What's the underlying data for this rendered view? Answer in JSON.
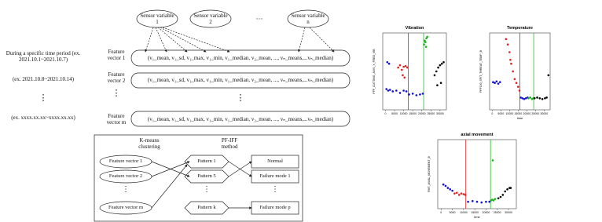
{
  "diagram": {
    "sensors": [
      "Sensor variable 1",
      "Sensor variable 2",
      "Sensor variable n"
    ],
    "sensor_ellipsis": "···",
    "rows": [
      {
        "period": "During a specific time period (ex. 2021.10.1~2021.10.7)",
        "feature": "Feature vector 1",
        "vector": "(v₁_mean, v₁_sd, v₁_max, v₁_min, v₁_median, v₂_mean, ..., vₙ_means,...vₙ_median)"
      },
      {
        "period": "(ex. 2021.10.8~2021.10.14)",
        "feature": "Feature vector 2",
        "vector": "(v₁_mean, v₁_sd, v₁_max, v₁_min, v₁_median, v₂_mean, ..., vₙ_means,...vₙ_median)"
      },
      {
        "period": "⋮",
        "feature": "⋮",
        "vector": "⋮"
      },
      {
        "period": "(ex. xxxx.xx.xx~xxxx.xx.xx)",
        "feature": "Feature vector m",
        "vector": "(v₁_mean, v₁_sd, v₁_max, v₁_min, v₁_median, v₂_mean, ..., vₙ_means,...vₙ_median)"
      }
    ],
    "clustering": {
      "kmeans": "K-means clustering",
      "pfiff": "PF-IFF method",
      "vectors": [
        "Feature vector 1",
        "Feature vector 2",
        "⋮",
        "Feature vector m"
      ],
      "patterns": [
        "Pattern 1",
        "Pattern 5",
        "⋮",
        "Pattern k"
      ],
      "modes": [
        "Normal",
        "Failure mode 1",
        "⋮",
        "Failure mode p"
      ]
    }
  },
  "chart_data": [
    {
      "type": "scatter",
      "title": "Vibration",
      "ylabel": "PFF_CUTTING_AXIS_X_FEED_VIB",
      "xlim": [
        -1500,
        33500
      ],
      "ylim": [
        0,
        1
      ],
      "xticks": [
        0,
        5000,
        10000,
        15000,
        20000,
        25000,
        30000
      ],
      "vlines": [
        {
          "x": 12500,
          "color": "#e02020"
        },
        {
          "x": 21000,
          "color": "#20c020"
        }
      ],
      "series": [
        {
          "color": "#1010d0",
          "x": [
            500,
            1500,
            2500,
            4000,
            6000,
            8000,
            10000,
            11500,
            13000,
            15000,
            17000,
            19000,
            20500,
            1000,
            2000
          ],
          "values": [
            0.27,
            0.25,
            0.26,
            0.24,
            0.25,
            0.22,
            0.25,
            0.24,
            0.2,
            0.21,
            0.19,
            0.2,
            0.21,
            0.62,
            0.6
          ]
        },
        {
          "color": "#e02020",
          "x": [
            7000,
            8000,
            9000,
            10000,
            11000,
            12000,
            9500,
            10500
          ],
          "values": [
            0.55,
            0.58,
            0.52,
            0.56,
            0.57,
            0.55,
            0.45,
            0.42
          ]
        },
        {
          "color": "#20b020",
          "x": [
            21200,
            21600,
            22000,
            22500,
            23000,
            22300
          ],
          "values": [
            0.85,
            0.9,
            0.88,
            0.93,
            0.95,
            0.82
          ]
        },
        {
          "color": "#000000",
          "x": [
            27000,
            28000,
            29000,
            30000,
            31000,
            32000,
            28500,
            30500
          ],
          "values": [
            0.45,
            0.5,
            0.55,
            0.58,
            0.6,
            0.62,
            0.32,
            0.35
          ]
        }
      ]
    },
    {
      "type": "scatter",
      "title": "Temperature",
      "ylabel": "PFF100_SPIT_THREAT_TEMP_B",
      "xlabel": "time",
      "xlim": [
        -1500,
        33500
      ],
      "ylim": [
        0,
        1
      ],
      "xticks": [
        0,
        5000,
        10000,
        15000,
        20000,
        25000,
        30000
      ],
      "vlines": [
        {
          "x": 16000,
          "color": "#e02020"
        },
        {
          "x": 24000,
          "color": "#20c020"
        }
      ],
      "series": [
        {
          "color": "#1010d0",
          "x": [
            500,
            1500,
            2500,
            3500,
            4500,
            16500,
            17500,
            18500,
            19500,
            20500
          ],
          "values": [
            0.36,
            0.35,
            0.37,
            0.34,
            0.36,
            0.16,
            0.15,
            0.14,
            0.15,
            0.16
          ]
        },
        {
          "color": "#e02020",
          "x": [
            8000,
            9000,
            10000,
            11000,
            12000,
            13000,
            14000,
            15000,
            15800,
            10500
          ],
          "values": [
            0.92,
            0.85,
            0.75,
            0.6,
            0.5,
            0.4,
            0.35,
            0.3,
            0.25,
            0.65
          ]
        },
        {
          "color": "#20b020",
          "x": [
            21000,
            22000,
            23000,
            23800
          ],
          "values": [
            0.15,
            0.16,
            0.14,
            0.15
          ]
        },
        {
          "color": "#000000",
          "x": [
            24500,
            26000,
            27500,
            29000,
            30500,
            31500,
            32500
          ],
          "values": [
            0.15,
            0.16,
            0.15,
            0.14,
            0.15,
            0.16,
            0.45
          ]
        }
      ]
    },
    {
      "type": "scatter",
      "title": "axial movement",
      "ylabel": "PMT_AXIAL_MOVEMENT_B",
      "xlabel": "time",
      "xlim": [
        -1500,
        33500
      ],
      "ylim": [
        0,
        1
      ],
      "xticks": [
        0,
        5000,
        10000,
        15000,
        20000,
        25000,
        30000
      ],
      "vlines": [
        {
          "x": 11000,
          "color": "#e02020"
        },
        {
          "x": 22000,
          "color": "#20c020"
        }
      ],
      "series": [
        {
          "color": "#1010d0",
          "x": [
            1000,
            2000,
            3000,
            4000,
            5000,
            12000,
            14000,
            16000,
            18000,
            20000,
            21500
          ],
          "values": [
            0.35,
            0.33,
            0.3,
            0.28,
            0.26,
            0.1,
            0.11,
            0.1,
            0.09,
            0.1,
            0.1
          ]
        },
        {
          "color": "#e02020",
          "x": [
            6000,
            7000,
            8000,
            9000,
            10000,
            10800
          ],
          "values": [
            0.22,
            0.23,
            0.2,
            0.22,
            0.21,
            0.2
          ]
        },
        {
          "color": "#20b020",
          "x": [
            22200,
            22800,
            23400,
            24000,
            23000
          ],
          "values": [
            0.12,
            0.13,
            0.12,
            0.14,
            0.7
          ]
        },
        {
          "color": "#000000",
          "x": [
            25500,
            26500,
            27500,
            28500,
            29500,
            30500,
            31000
          ],
          "values": [
            0.15,
            0.17,
            0.2,
            0.25,
            0.28,
            0.3,
            0.3
          ]
        }
      ]
    }
  ]
}
